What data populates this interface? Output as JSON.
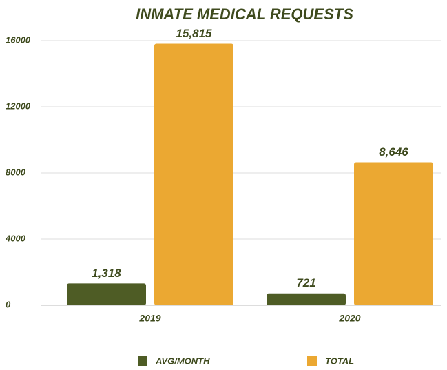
{
  "chart_data": {
    "type": "bar",
    "title": "INMATE MEDICAL REQUESTS",
    "categories": [
      "2019",
      "2020"
    ],
    "series": [
      {
        "name": "AVG/MONTH",
        "color": "#4e5c25",
        "values": [
          1318,
          721
        ],
        "value_labels": [
          "1,318",
          "721"
        ]
      },
      {
        "name": "TOTAL",
        "color": "#eba832",
        "values": [
          15815,
          8646
        ],
        "value_labels": [
          "15,815",
          "8,646"
        ]
      }
    ],
    "ylim": [
      0,
      16000
    ],
    "yticks": [
      0,
      4000,
      8000,
      12000,
      16000
    ],
    "grid": true,
    "legend": "bottom"
  }
}
